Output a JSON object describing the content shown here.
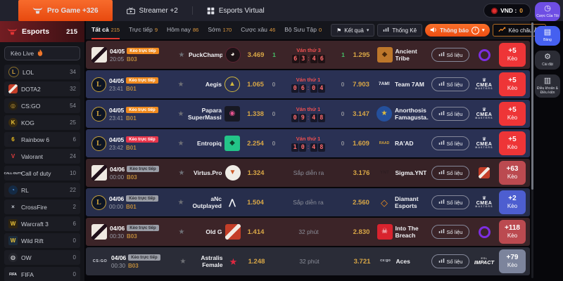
{
  "icons": {
    "star": "★",
    "caret": "▾",
    "flag": "⚑",
    "info": "i",
    "crown": "♛",
    "clock": "◷",
    "doc": "▤",
    "gear": "⚙",
    "file": "▥"
  },
  "labels": {
    "stats": "Số liệu",
    "keo": "Kèo"
  },
  "colors": {
    "accent_orange": "#f2551c",
    "badge_orange": "#f08a1e",
    "badge_red": "#e8354b",
    "badge_gray": "#9a9da6",
    "odds_gold": "#d9a746",
    "more_red": "#ee3537",
    "more_crimson": "#bb4a50",
    "more_indigo": "#4d5ed0",
    "more_slate": "#7c849c",
    "rail_purple": "#6e4ee4",
    "rail_blue": "#4560f0",
    "timer_red": "#ff6a6a"
  },
  "topbar": {
    "tabs": [
      {
        "id": "pro-game",
        "icon": "bull",
        "label": "Pro Game +326",
        "active": true
      },
      {
        "id": "streamer",
        "icon": "tv",
        "label": "Streamer +2",
        "active": false
      },
      {
        "id": "esports-virtual",
        "icon": "grid",
        "label": "Esports Virtual",
        "active": false
      }
    ],
    "balance": {
      "label": "VND :",
      "amount": "0"
    }
  },
  "rail": [
    {
      "id": "my-bets",
      "icon": "clock",
      "label": "Cược Của Tôi",
      "style": "purple"
    },
    {
      "id": "board",
      "icon": "doc",
      "label": "Bảng",
      "style": "blue"
    },
    {
      "id": "settings",
      "icon": "gear",
      "label": "Cài đặt",
      "style": "gray"
    },
    {
      "id": "terms",
      "icon": "file",
      "label": "Điều khoản & Điều kiện",
      "style": "gray"
    }
  ],
  "sidebar": {
    "title": "Esports",
    "count": "215",
    "live_label": "Kèo Live",
    "items": [
      {
        "label": "LOL",
        "count": "34",
        "icon": {
          "shape": "circle",
          "glyph": "L",
          "fg": "#d2a43c",
          "bg": "#141824",
          "border": "#8a6f2a"
        }
      },
      {
        "label": "DOTA2",
        "count": "32",
        "icon": {
          "shape": "dota"
        }
      },
      {
        "label": "CS:GO",
        "count": "54",
        "icon": {
          "shape": "circle",
          "glyph": "◎",
          "fg": "#d2a43c",
          "bg": "#2a2210"
        }
      },
      {
        "label": "KOG",
        "count": "25",
        "icon": {
          "shape": "circle",
          "glyph": "K",
          "fg": "#e8c23a",
          "bg": "#3a2c10"
        }
      },
      {
        "label": "Rainbow 6",
        "count": "6",
        "icon": {
          "shape": "square",
          "glyph": "6",
          "fg": "#f0c020",
          "bg": "#1a1b22"
        }
      },
      {
        "label": "Valorant",
        "count": "24",
        "icon": {
          "shape": "text",
          "glyph": "V",
          "fg": "#e23d3d"
        }
      },
      {
        "label": "Call of duty",
        "count": "10",
        "icon": {
          "shape": "text",
          "glyph": "CALL·DUTY",
          "fg": "#cfd2da",
          "size": "4.5px"
        }
      },
      {
        "label": "RL",
        "count": "22",
        "icon": {
          "shape": "circle",
          "glyph": "◔",
          "fg": "#5a9cf0",
          "bg": "#142a44"
        }
      },
      {
        "label": "CrossFire",
        "count": "2",
        "icon": {
          "shape": "text",
          "glyph": "×",
          "fg": "#c8ccd6"
        }
      },
      {
        "label": "Warcraft 3",
        "count": "6",
        "icon": {
          "shape": "square",
          "glyph": "W",
          "fg": "#e8c23a",
          "bg": "#2e2410"
        }
      },
      {
        "label": "Wild Rift",
        "count": "0",
        "icon": {
          "shape": "square",
          "glyph": "W",
          "fg": "#e8c23a",
          "bg": "#1c2c3c"
        }
      },
      {
        "label": "OW",
        "count": "0",
        "icon": {
          "shape": "circle",
          "glyph": "◍",
          "fg": "#f0f1f4",
          "bg": "#26272e"
        }
      },
      {
        "label": "FIFA",
        "count": "0",
        "icon": {
          "shape": "text",
          "glyph": "FIFA",
          "fg": "#eceef2",
          "size": "5px"
        }
      }
    ]
  },
  "filterbar": {
    "tabs": [
      {
        "label": "Tất cả",
        "count": "215",
        "active": true
      },
      {
        "label": "Trực tiếp",
        "count": "9",
        "active": false
      },
      {
        "label": "Hôm nay",
        "count": "86",
        "active": false
      },
      {
        "label": "Sớm",
        "count": "170",
        "active": false
      },
      {
        "label": "Cược xâu",
        "count": "46",
        "active": false
      },
      {
        "label": "Bộ Sưu Tập",
        "count": "0",
        "active": false
      }
    ],
    "results_label": "Kết quả",
    "stats_label": "Thống Kê",
    "notice_label": "Thông báo",
    "euro_label": "Kèo châu Âu"
  },
  "matches": [
    {
      "game": "dota",
      "date": "04/05",
      "time": "20:05",
      "series": "B03",
      "row": "dotalive",
      "badge": {
        "label": "Kèo trực tiếp",
        "style": "orange"
      },
      "team1": {
        "name": "PuckChamp",
        "odds": "3.469",
        "score": "1",
        "logo": {
          "shape": "circle",
          "bg": "#1d1216",
          "border": "#5d2433",
          "glyph": "◕",
          "fg": "#ece6de"
        }
      },
      "status": {
        "label": "Ván thứ 3",
        "timer": "63:46"
      },
      "team2": {
        "name": "Ancient Tribe",
        "odds": "1.295",
        "score": "1",
        "logo": {
          "shape": "square",
          "bg": "#bd772b",
          "glyph": "◆",
          "fg": "#4a2809"
        }
      },
      "league": {
        "type": "swirl"
      },
      "more": {
        "count": "+5",
        "style": "red"
      }
    },
    {
      "game": "lol",
      "date": "04/05",
      "time": "23:41",
      "series": "B01",
      "row": "lollive",
      "badge": {
        "label": "Kèo trực tiếp",
        "style": "orange"
      },
      "team1": {
        "name": "Aegis",
        "odds": "1.065",
        "score": "0",
        "logo": {
          "shape": "circle",
          "bg": "transparent",
          "border": "#d2b83e",
          "glyph": "▲",
          "fg": "#d2b83e"
        }
      },
      "status": {
        "label": "Ván thứ 1",
        "timer": "06:04"
      },
      "team2": {
        "name": "Team 7AM",
        "odds": "7.903",
        "score": "0",
        "logo": {
          "shape": "text",
          "glyph": "7AM!",
          "fg": "#f2f3f6",
          "size": "6.5px"
        }
      },
      "league": {
        "type": "cmea",
        "lines": [
          "CMEA",
          "MASTERS"
        ]
      },
      "more": {
        "count": "+5",
        "style": "red"
      }
    },
    {
      "game": "lol",
      "date": "04/05",
      "time": "23:41",
      "series": "B01",
      "row": "lollive",
      "badge": {
        "label": "Kèo trực tiếp",
        "style": "orange"
      },
      "team1": {
        "name": "Papara SuperMassive",
        "odds": "1.338",
        "score": "0",
        "logo": {
          "shape": "square",
          "bg": "#171823",
          "glyph": "◉",
          "fg": "#e4538e"
        }
      },
      "status": {
        "label": "Ván thứ 1",
        "timer": "09:48"
      },
      "team2": {
        "name": "Anorthosis Famagusta...",
        "odds": "3.147",
        "score": "0",
        "logo": {
          "shape": "circle",
          "bg": "#24509c",
          "glyph": "★",
          "fg": "#e0bc3e"
        }
      },
      "league": {
        "type": "cmea",
        "lines": [
          "CMEA",
          "MASTERS"
        ]
      },
      "more": {
        "count": "+5",
        "style": "red"
      }
    },
    {
      "game": "lol",
      "date": "04/05",
      "time": "23:42",
      "series": "B01",
      "row": "lollive",
      "badge": {
        "label": "Kèo trực tiếp",
        "style": "red"
      },
      "team1": {
        "name": "Entropiq",
        "odds": "2.254",
        "score": "0",
        "logo": {
          "shape": "square",
          "bg": "#23c488",
          "glyph": "◆",
          "fg": "#0d3d2a"
        }
      },
      "status": {
        "label": "Ván thứ 1",
        "timer": "10:48"
      },
      "team2": {
        "name": "RA'AD",
        "odds": "1.609",
        "score": "0",
        "logo": {
          "shape": "text",
          "glyph": "RAAD",
          "fg": "#d2a33c",
          "size": "5px"
        }
      },
      "league": {
        "type": "cmea",
        "lines": [
          "CMEA",
          "MASTERS"
        ]
      },
      "more": {
        "count": "+5",
        "style": "red"
      }
    },
    {
      "game": "dota",
      "date": "04/06",
      "time": "00:00",
      "series": "B03",
      "row": "dotasoon",
      "badge": {
        "label": "Kèo trực tiếp",
        "style": "gray"
      },
      "team1": {
        "name": "Virtus.Pro",
        "odds": "1.324",
        "logo": {
          "shape": "circle",
          "bg": "#efece6",
          "glyph": "▼",
          "fg": "#cd5b2a"
        }
      },
      "status": {
        "text": "Sắp diễn ra"
      },
      "team2": {
        "name": "Sigma.YNT",
        "odds": "3.176",
        "logo": {
          "shape": "text",
          "glyph": "YNT",
          "fg": "#2e1e22",
          "size": "6.5px"
        }
      },
      "league": {
        "type": "dota"
      },
      "more": {
        "count": "+63",
        "style": "crimson"
      }
    },
    {
      "game": "lol",
      "date": "04/06",
      "time": "00:00",
      "series": "B01",
      "row": "lolsoon",
      "badge": {
        "label": "Kèo trực tiếp",
        "style": "gray"
      },
      "team1": {
        "name": "aNc Outplayed",
        "odds": "1.504",
        "logo": {
          "shape": "text",
          "glyph": "⋀",
          "fg": "#f2f3f6",
          "size": "12px"
        }
      },
      "status": {
        "text": "Sắp diễn ra"
      },
      "team2": {
        "name": "Diamant Esports",
        "odds": "2.560",
        "logo": {
          "shape": "text",
          "glyph": "◇",
          "fg": "#ef8f1f",
          "size": "13px"
        }
      },
      "league": {
        "type": "cmea",
        "lines": [
          "CMEA",
          "MASTERS"
        ]
      },
      "more": {
        "count": "+2",
        "style": "indigo"
      }
    },
    {
      "game": "dota",
      "date": "04/06",
      "time": "00:30",
      "series": "B03",
      "row": "dotalive",
      "badge": {
        "label": "Kèo trực tiếp",
        "style": "gray"
      },
      "team1": {
        "name": "Old G",
        "odds": "1.414",
        "logo": {
          "shape": "dota"
        }
      },
      "status": {
        "text": "32 phút"
      },
      "team2": {
        "name": "Into The Breach",
        "odds": "2.830",
        "logo": {
          "shape": "square",
          "bg": "#d8232e",
          "glyph": "☠",
          "fg": "#ffffff"
        }
      },
      "league": {
        "type": "swirl"
      },
      "more": {
        "count": "+118",
        "style": "crimson"
      }
    },
    {
      "game": "csgo",
      "date": "04/06",
      "time": "00:30",
      "series": "B03",
      "row": "csgo",
      "badge": {
        "label": "Kèo trực tiếp",
        "style": "gray"
      },
      "team1": {
        "name": "Astralis Female",
        "odds": "1.248",
        "logo": {
          "shape": "text",
          "glyph": "★",
          "fg": "#df2840",
          "size": "13px"
        }
      },
      "status": {
        "text": "32 phút"
      },
      "team2": {
        "name": "Aces",
        "odds": "3.721",
        "logo": {
          "shape": "text",
          "glyph": "cs:go",
          "fg": "#c4c7d0",
          "size": "5.5px"
        }
      },
      "league": {
        "type": "esl",
        "lines": [
          "ESL",
          "IMPACT"
        ]
      },
      "more": {
        "count": "+79",
        "style": "slate"
      }
    }
  ]
}
